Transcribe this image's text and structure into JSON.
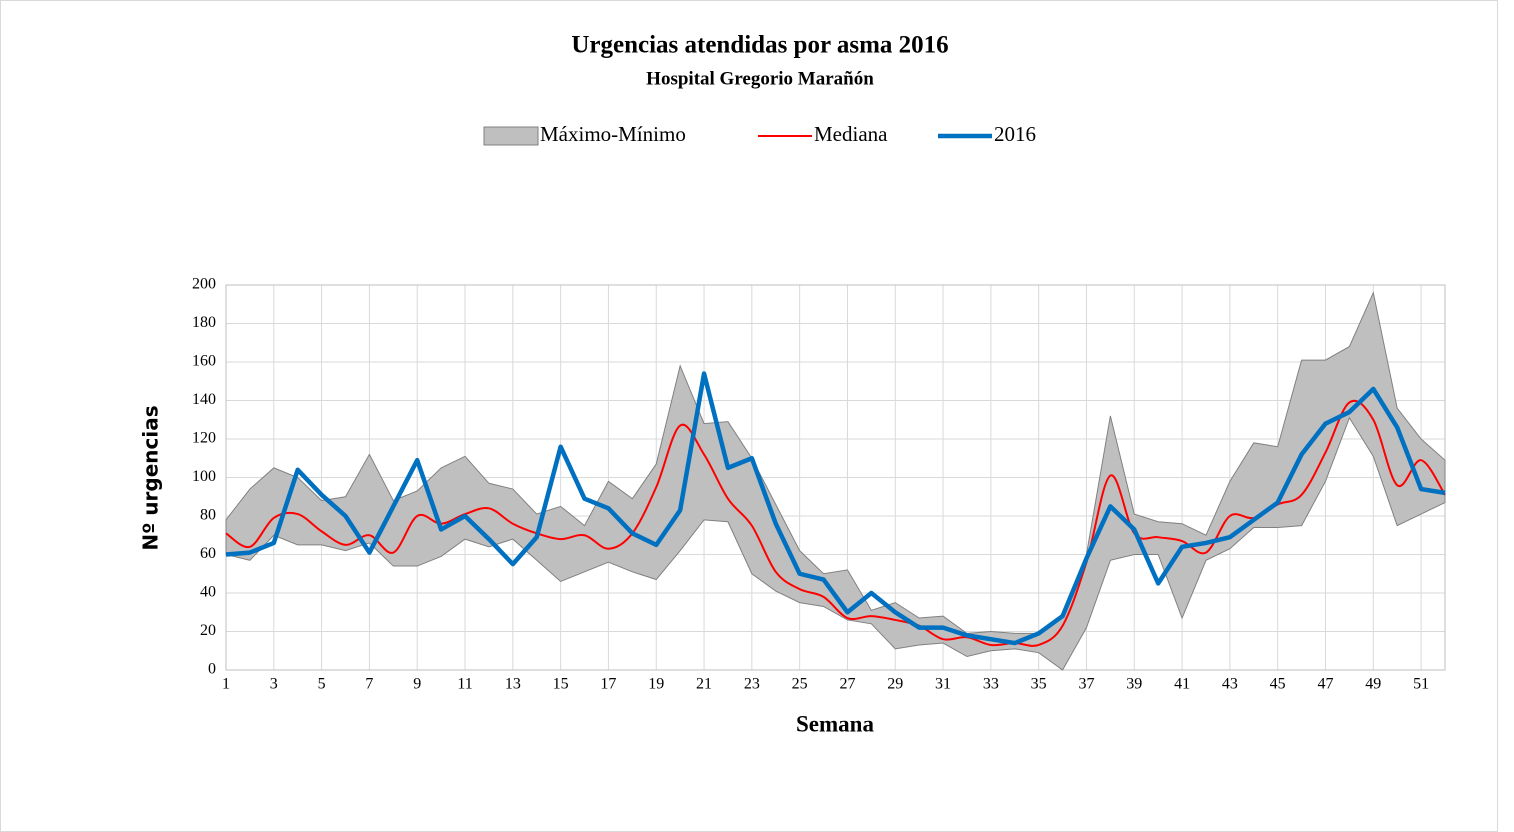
{
  "chart_data": {
    "type": "line",
    "title": "Urgencias atendidas por asma 2016",
    "subtitle": "Hospital Gregorio Marañón",
    "x_label": "Semana",
    "y_label": "Nº urgencias",
    "categories": [
      "1",
      null,
      "3",
      null,
      "5",
      null,
      "7",
      null,
      "9",
      null,
      "11",
      null,
      "13",
      null,
      "15",
      null,
      "17",
      null,
      "19",
      null,
      "21",
      null,
      "23",
      null,
      "25",
      null,
      "27",
      null,
      "29",
      null,
      "31",
      null,
      "33",
      null,
      "35",
      null,
      "37",
      null,
      "39",
      null,
      "41",
      null,
      "43",
      null,
      "45",
      null,
      "47",
      null,
      "49",
      null,
      "51",
      null
    ],
    "series": [
      {
        "name": "Máximo-Mínimo",
        "type": "band",
        "color": "#bfbfbf",
        "edge_color": "#808080",
        "upper": [
          78,
          94,
          105,
          100,
          88,
          90,
          112,
          88,
          93,
          105,
          111,
          97,
          94,
          81,
          85,
          75,
          98,
          89,
          107,
          158,
          128,
          129,
          110,
          86,
          62,
          50,
          52,
          31,
          35,
          27,
          28,
          19,
          20,
          19,
          19,
          28,
          60,
          132,
          81,
          77,
          76,
          70,
          98,
          118,
          116,
          161,
          161,
          168,
          196,
          136,
          120,
          109
        ],
        "lower": [
          60,
          57,
          70,
          65,
          65,
          62,
          66,
          54,
          54,
          59,
          68,
          64,
          68,
          57,
          46,
          51,
          56,
          51,
          47,
          62,
          78,
          77,
          50,
          41,
          35,
          33,
          26,
          24,
          11,
          13,
          14,
          7,
          10,
          11,
          9,
          0,
          22,
          57,
          60,
          60,
          27,
          57,
          63,
          74,
          74,
          75,
          98,
          131,
          111,
          75,
          81,
          87
        ]
      },
      {
        "name": "Mediana",
        "type": "smooth",
        "color": "#ff0000",
        "width": 2,
        "values": [
          71,
          64,
          79,
          81,
          72,
          65,
          70,
          61,
          80,
          76,
          81,
          84,
          76,
          71,
          68,
          70,
          63,
          71,
          95,
          127,
          112,
          89,
          75,
          51,
          42,
          38,
          27,
          28,
          26,
          23,
          16,
          17,
          13,
          14,
          13,
          23,
          56,
          101,
          71,
          69,
          67,
          61,
          80,
          79,
          86,
          91,
          113,
          139,
          130,
          96,
          109,
          91
        ]
      },
      {
        "name": "2016",
        "type": "line",
        "color": "#0070c0",
        "width": 4.5,
        "values": [
          60,
          61,
          66,
          104,
          91,
          80,
          61,
          85,
          109,
          73,
          80,
          68,
          55,
          69,
          116,
          89,
          84,
          71,
          65,
          83,
          154,
          105,
          110,
          76,
          50,
          47,
          30,
          40,
          30,
          22,
          22,
          18,
          16,
          14,
          19,
          28,
          58,
          85,
          73,
          45,
          64,
          66,
          69,
          78,
          87,
          112,
          128,
          134,
          146,
          126,
          94,
          92
        ]
      }
    ],
    "ylim": [
      0,
      200
    ],
    "yticks": [
      0,
      20,
      40,
      60,
      80,
      100,
      120,
      140,
      160,
      180,
      200
    ],
    "grid": true,
    "legend": "top"
  }
}
